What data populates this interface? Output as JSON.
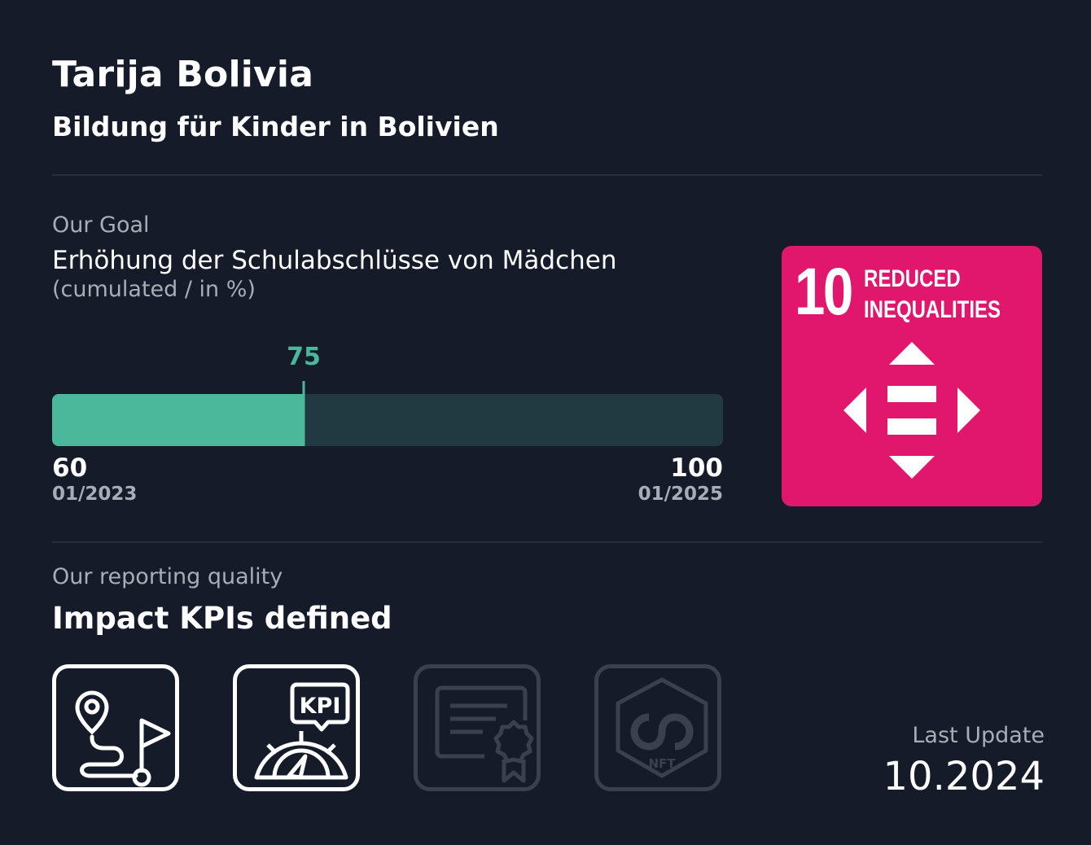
{
  "header": {
    "title": "Tarija Bolivia",
    "subtitle": "Bildung für Kinder in Bolivien"
  },
  "goal": {
    "label": "Our Goal",
    "text": "Erhöhung der Schulabschlüsse von Mädchen",
    "unit": "(cumulated / in %)",
    "min": 60,
    "max": 100,
    "current": 75,
    "start_date": "01/2023",
    "end_date": "01/2025",
    "min_label": "60",
    "max_label": "100",
    "current_label": "75"
  },
  "sdg": {
    "number": "10",
    "line1": "REDUCED",
    "line2": "INEQUALITIES",
    "color": "#e0176c",
    "icon": "reduced-inequalities-arrows-icon"
  },
  "reporting": {
    "label": "Our reporting quality",
    "title": "Impact KPIs defined",
    "items": [
      {
        "icon": "roadmap-flag-icon",
        "active": true
      },
      {
        "icon": "kpi-gauge-icon",
        "active": true,
        "badge": "KPI"
      },
      {
        "icon": "certificate-icon",
        "active": false
      },
      {
        "icon": "nft-hexagon-icon",
        "active": false,
        "badge": "NFT"
      }
    ]
  },
  "last_update": {
    "label": "Last Update",
    "date": "10.2024"
  },
  "colors": {
    "background": "#161b2a",
    "accent": "#4bb89c",
    "track": "#213940",
    "muted": "#a9adb6",
    "inactive": "#3a404e"
  }
}
